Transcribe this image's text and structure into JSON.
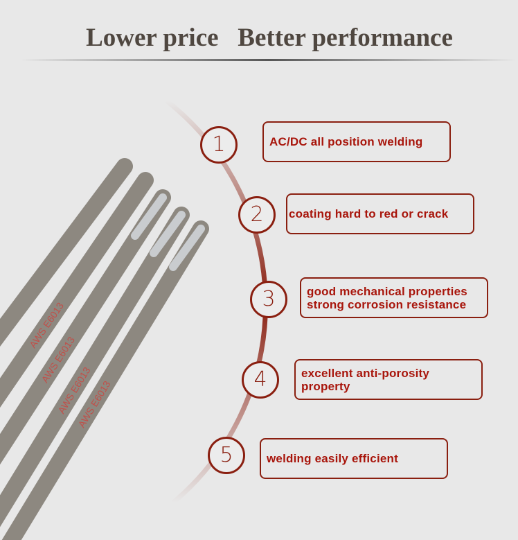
{
  "header": {
    "title": "Lower price   Better performance"
  },
  "product": {
    "rod_marking": "AWS E6013"
  },
  "colors": {
    "accent": "#8a1f10",
    "text": "#a8150b",
    "title": "#4f4740",
    "background": "#e8e8e8"
  },
  "features": [
    {
      "number": "1",
      "lines": [
        "AC/DC all position welding"
      ]
    },
    {
      "number": "2",
      "lines": [
        "coating hard to red or crack"
      ]
    },
    {
      "number": "3",
      "lines": [
        "good mechanical properties",
        "strong corrosion resistance"
      ]
    },
    {
      "number": "4",
      "lines": [
        "excellent anti-porosity",
        "property"
      ]
    },
    {
      "number": "5",
      "lines": [
        "welding easily efficient"
      ]
    }
  ]
}
